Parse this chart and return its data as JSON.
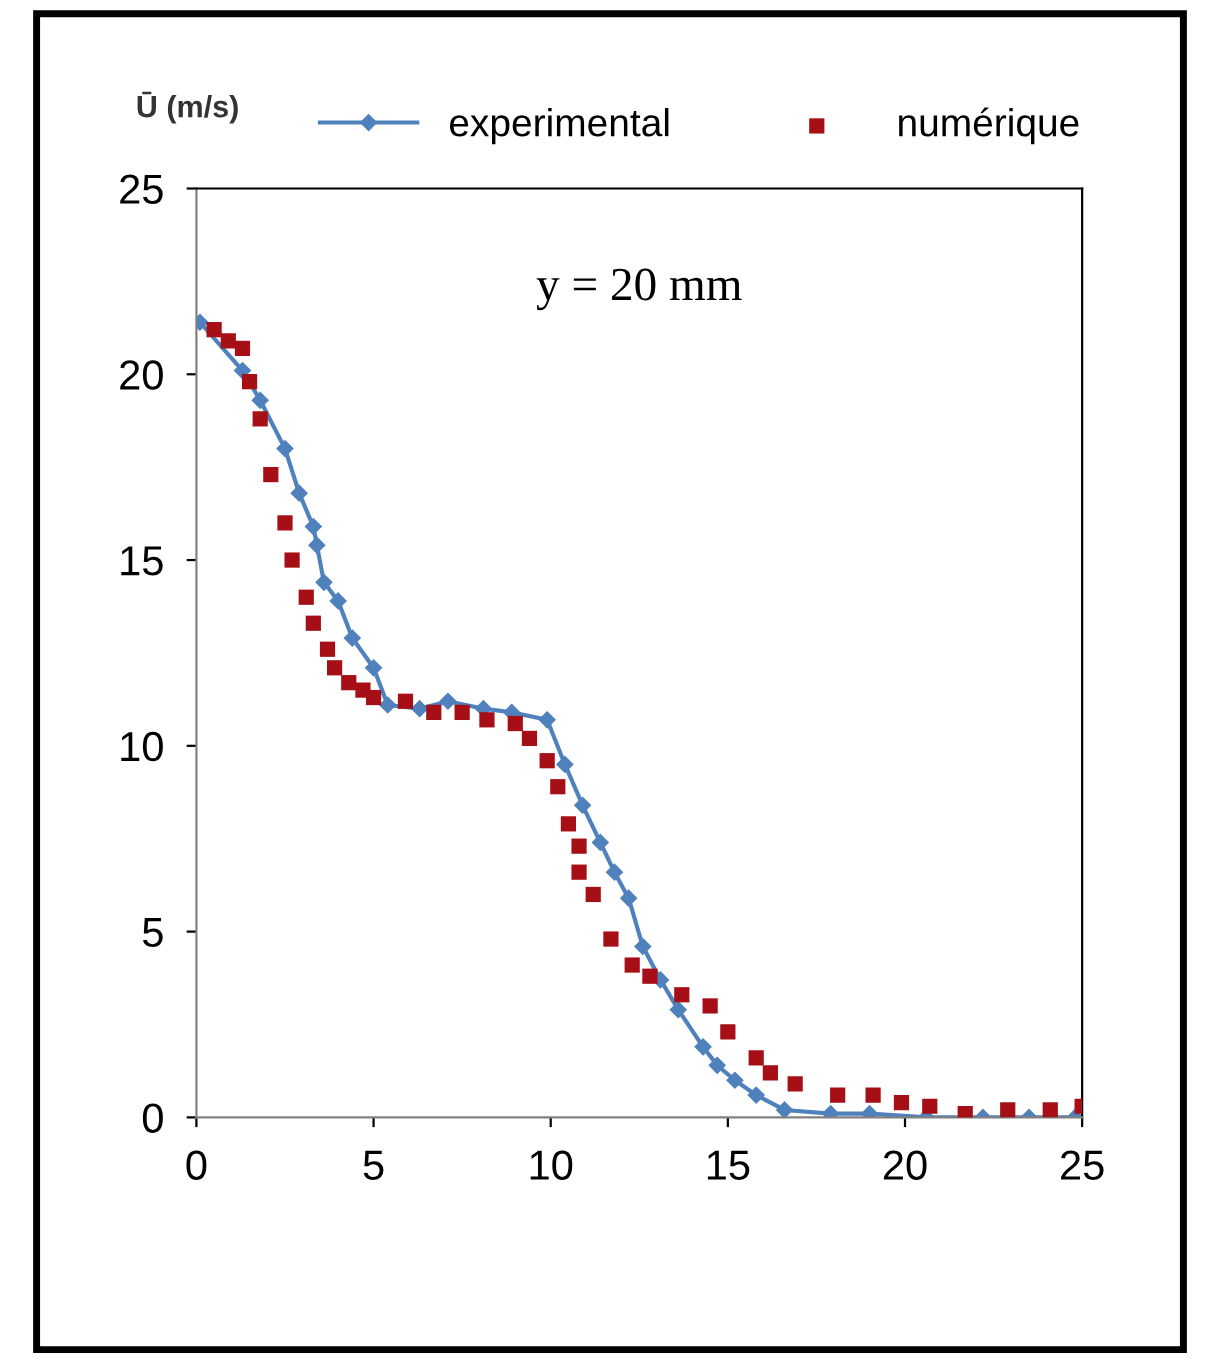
{
  "chart_data": {
    "type": "line",
    "ylabel": "Ū (m/s)",
    "annotations": [
      "y = 20 mm"
    ],
    "xlim": [
      0,
      25
    ],
    "xticks": [
      0,
      5,
      10,
      15,
      20,
      25
    ],
    "ylim": [
      0,
      25
    ],
    "yticks": [
      0,
      5,
      10,
      15,
      20,
      25
    ],
    "grid": false,
    "legend": "top",
    "series": [
      {
        "name": "experimental",
        "color": "#4f81bd",
        "marker": "diamond",
        "line_style": "solid",
        "x": [
          0.1,
          1.3,
          1.8,
          2.5,
          2.9,
          3.3,
          3.4,
          3.6,
          4.0,
          4.4,
          5.0,
          5.4,
          6.3,
          7.1,
          8.1,
          8.9,
          9.9,
          10.4,
          10.9,
          11.4,
          11.8,
          12.2,
          12.6,
          13.1,
          13.6,
          14.3,
          14.7,
          15.2,
          15.8,
          16.6,
          17.9,
          19.0,
          20.6,
          22.2,
          23.5,
          24.8
        ],
        "values": [
          21.4,
          20.1,
          19.3,
          18.0,
          16.8,
          15.9,
          15.4,
          14.4,
          13.9,
          12.9,
          12.1,
          11.1,
          11.0,
          11.2,
          11.0,
          10.9,
          10.7,
          9.5,
          8.4,
          7.4,
          6.6,
          5.9,
          4.6,
          3.7,
          2.9,
          1.9,
          1.4,
          1.0,
          0.6,
          0.2,
          0.1,
          0.1,
          0.0,
          0.0,
          0.0,
          0.0
        ]
      },
      {
        "name": "numérique",
        "type": "scatter",
        "color": "#a50f15",
        "marker": "square",
        "x": [
          0.5,
          0.9,
          1.3,
          1.5,
          1.8,
          2.1,
          2.5,
          2.7,
          3.1,
          3.3,
          3.7,
          3.9,
          4.3,
          4.7,
          5.0,
          5.9,
          6.7,
          7.5,
          8.2,
          9.0,
          9.4,
          9.9,
          10.2,
          10.5,
          10.8,
          10.8,
          11.2,
          11.7,
          12.3,
          12.8,
          13.7,
          14.5,
          15.0,
          15.8,
          16.2,
          16.9,
          18.1,
          19.1,
          19.9,
          20.7,
          21.7,
          22.9,
          24.1,
          25.0
        ],
        "values": [
          21.2,
          20.9,
          20.7,
          19.8,
          18.8,
          17.3,
          16.0,
          15.0,
          14.0,
          13.3,
          12.6,
          12.1,
          11.7,
          11.5,
          11.3,
          11.2,
          10.9,
          10.9,
          10.7,
          10.6,
          10.2,
          9.6,
          8.9,
          7.9,
          7.3,
          6.6,
          6.0,
          4.8,
          4.1,
          3.8,
          3.3,
          3.0,
          2.3,
          1.6,
          1.2,
          0.9,
          0.6,
          0.6,
          0.4,
          0.3,
          0.1,
          0.2,
          0.2,
          0.3
        ]
      }
    ]
  }
}
